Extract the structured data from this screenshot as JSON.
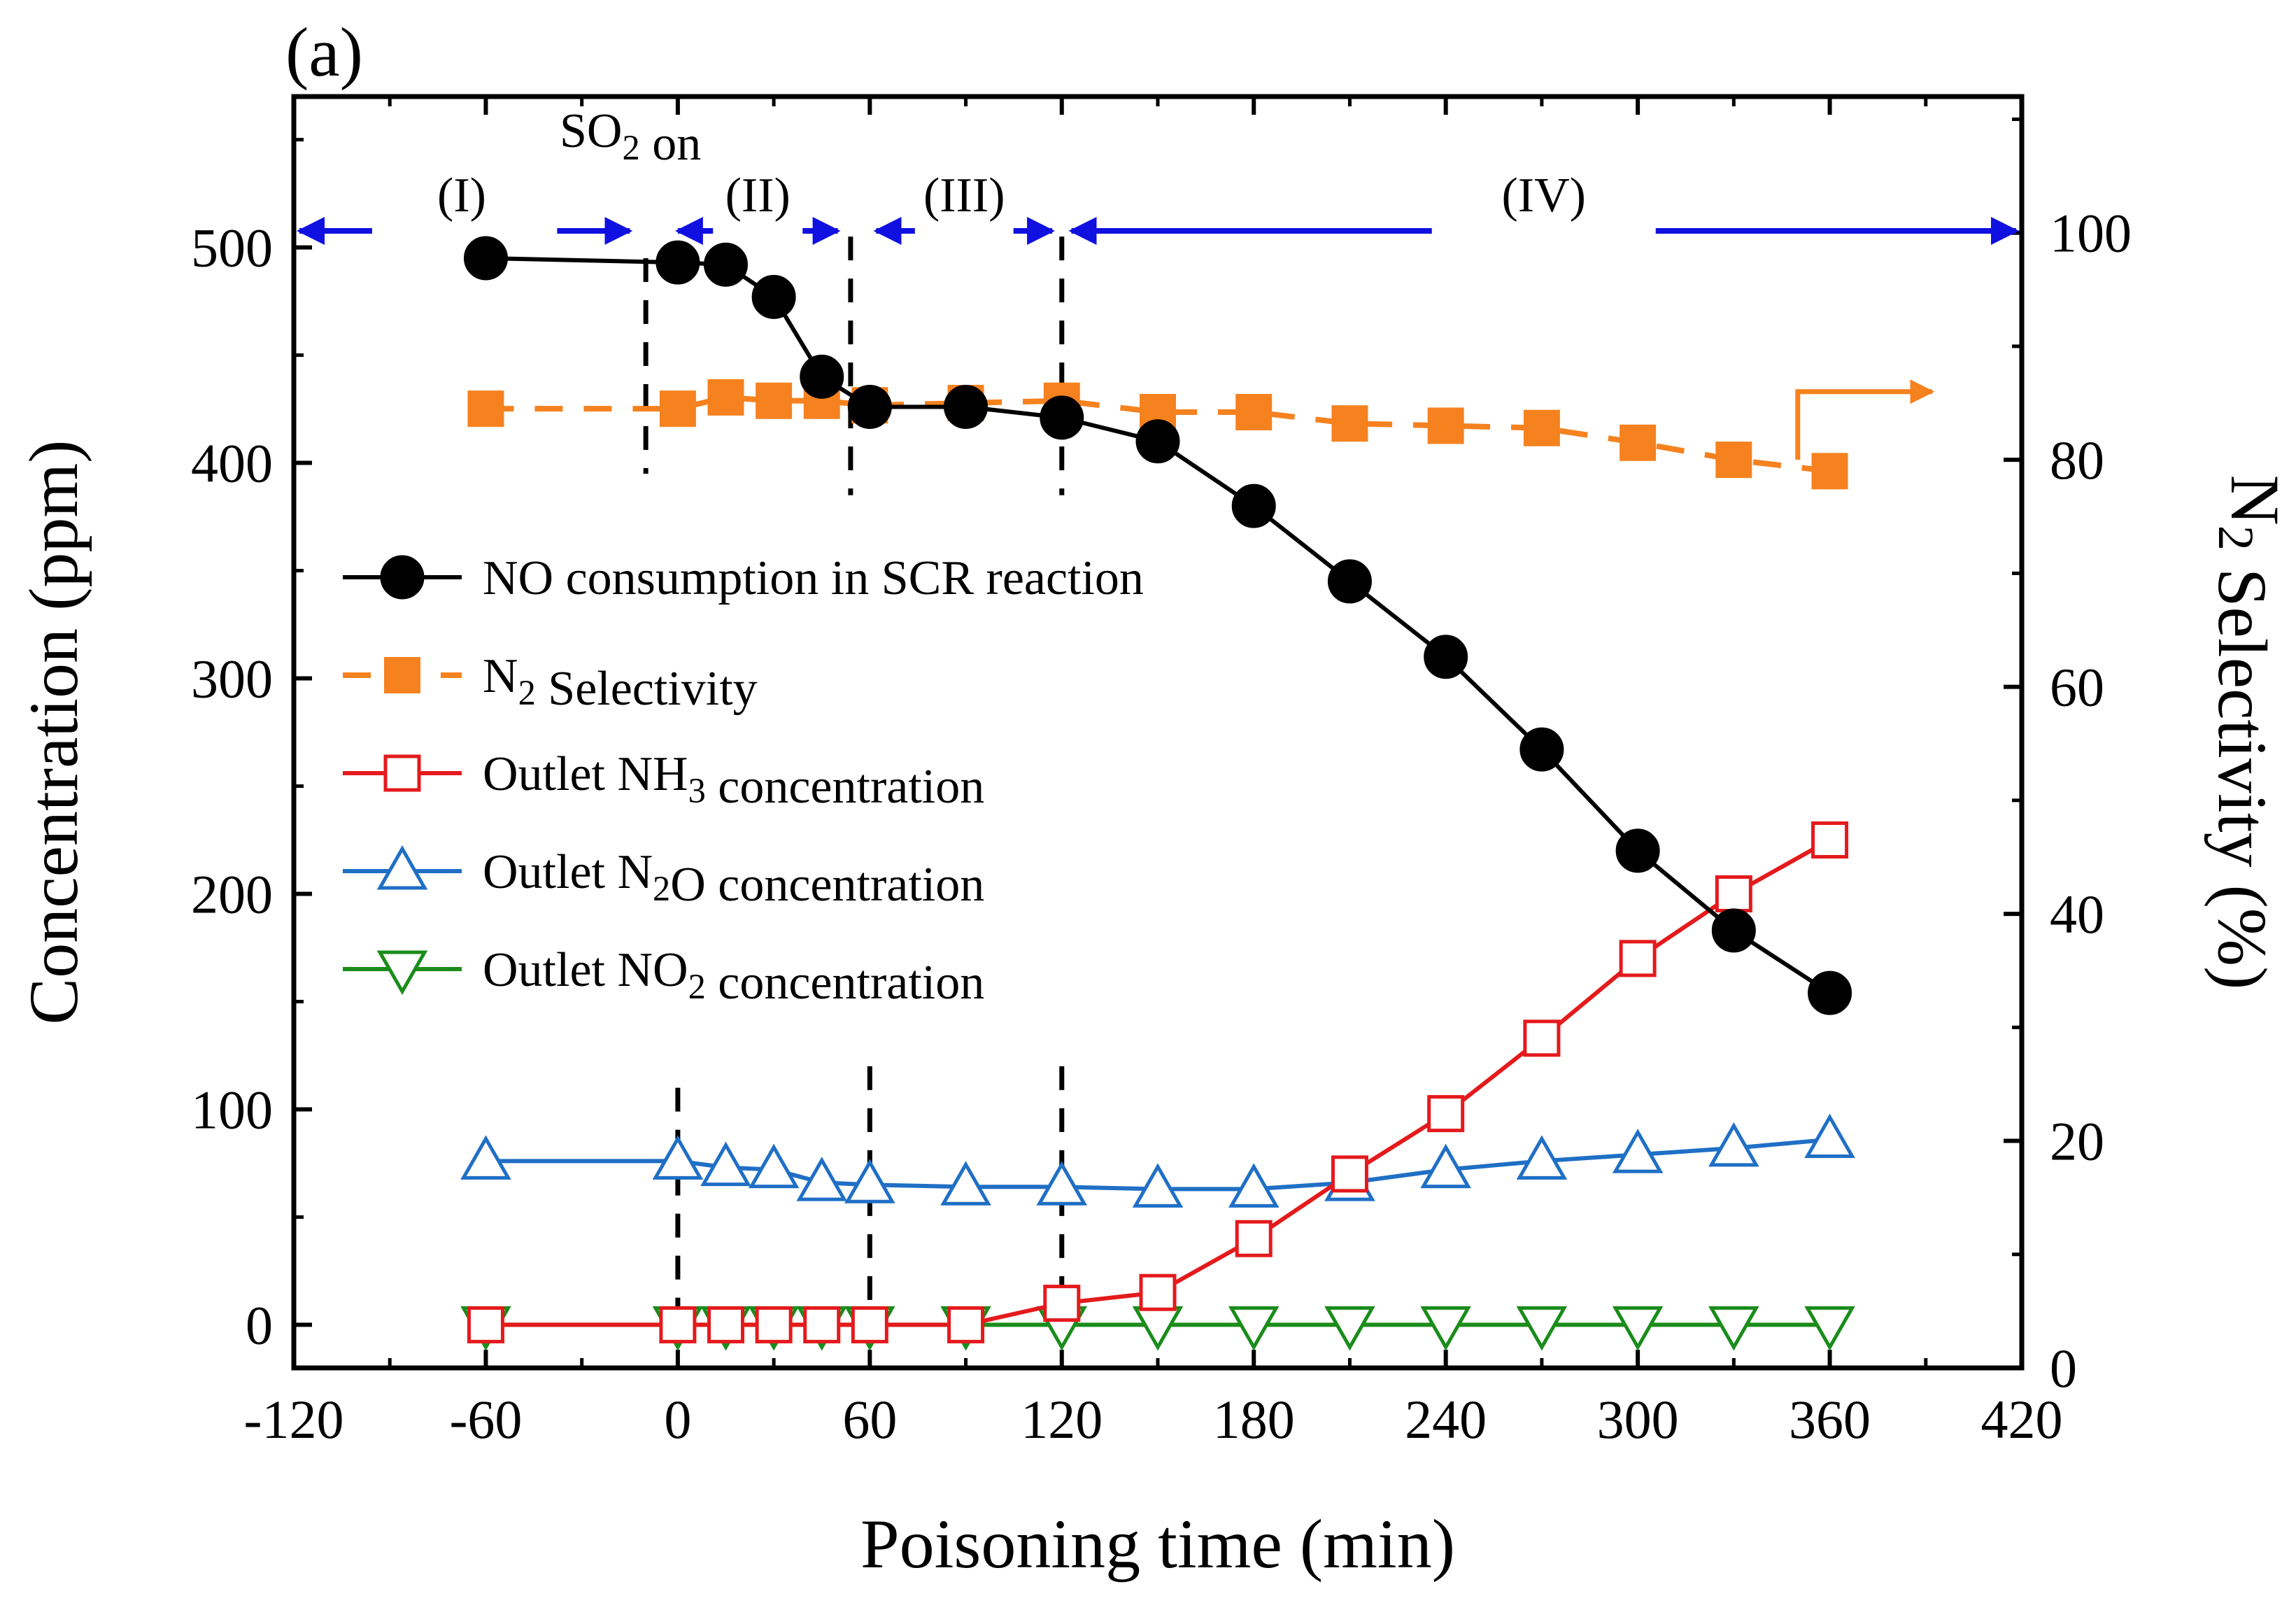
{
  "chart_data": {
    "type": "line",
    "panel_label": "(a)",
    "xlabel": "Poisoning time (min)",
    "ylabel_left": "Concentration (ppm)",
    "ylabel_right": {
      "base": "N",
      "sub": "2",
      "rest": " Selectivity (%)"
    },
    "xlim": [
      -120,
      420
    ],
    "ylim_left": [
      -20,
      570
    ],
    "ylim_right": [
      0,
      112
    ],
    "x_ticks": [
      -120,
      -60,
      0,
      60,
      120,
      180,
      240,
      300,
      360,
      420
    ],
    "y_left_ticks": [
      0,
      100,
      200,
      300,
      400,
      500
    ],
    "y_right_ticks": [
      0,
      20,
      40,
      60,
      80,
      100
    ],
    "series": [
      {
        "name": "NO consumption in SCR reaction",
        "axis": "left",
        "color": "#000000",
        "marker": "filled-circle",
        "line": "solid",
        "x": [
          -60,
          0,
          15,
          30,
          45,
          60,
          90,
          120,
          150,
          180,
          210,
          240,
          270,
          300,
          330,
          360
        ],
        "y": [
          495,
          493,
          492,
          477,
          440,
          426,
          426,
          421,
          410,
          380,
          345,
          310,
          267,
          220,
          183,
          154
        ]
      },
      {
        "name": "N2 Selectivity",
        "axis": "right",
        "color": "#f5821f",
        "marker": "filled-square",
        "line": "dashed",
        "x": [
          -60,
          0,
          15,
          30,
          45,
          60,
          90,
          120,
          150,
          180,
          210,
          240,
          270,
          300,
          330,
          360
        ],
        "y": [
          84.5,
          84.5,
          85.5,
          85.2,
          85.2,
          84.8,
          85.0,
          85.2,
          84.2,
          84.2,
          83.2,
          83.0,
          82.8,
          81.5,
          80.0,
          79.0
        ]
      },
      {
        "name": "Outlet NH3 concentration",
        "axis": "left",
        "color": "#e41a1c",
        "marker": "open-square",
        "line": "solid",
        "x": [
          -60,
          0,
          15,
          30,
          45,
          60,
          90,
          120,
          150,
          180,
          210,
          240,
          270,
          300,
          330,
          360
        ],
        "y": [
          0,
          0,
          0,
          0,
          0,
          0,
          0,
          10,
          15,
          40,
          70,
          98,
          133,
          170,
          200,
          225
        ]
      },
      {
        "name": "Outlet N2O concentration",
        "axis": "left",
        "color": "#1f6fc5",
        "marker": "open-triangle-up",
        "line": "solid",
        "x": [
          -60,
          0,
          15,
          30,
          45,
          60,
          90,
          120,
          150,
          180,
          210,
          240,
          270,
          300,
          330,
          360
        ],
        "y": [
          76,
          76,
          73,
          72,
          66,
          65,
          64,
          64,
          63,
          63,
          66,
          72,
          76,
          79,
          82,
          86
        ]
      },
      {
        "name": "Outlet NO2 concentration",
        "axis": "left",
        "color": "#1a8c1a",
        "marker": "open-triangle-down",
        "line": "solid",
        "x": [
          -60,
          0,
          15,
          30,
          45,
          60,
          90,
          120,
          150,
          180,
          210,
          240,
          270,
          300,
          330,
          360
        ],
        "y": [
          0,
          0,
          0,
          0,
          0,
          0,
          0,
          0,
          0,
          0,
          0,
          0,
          0,
          0,
          0,
          0
        ]
      }
    ],
    "legend": [
      {
        "parts": [
          [
            "NO  consumption in SCR reaction",
            ""
          ]
        ]
      },
      {
        "parts": [
          [
            "N",
            ""
          ],
          [
            "2",
            "sub"
          ],
          [
            " Selectivity",
            ""
          ]
        ]
      },
      {
        "parts": [
          [
            "Outlet NH",
            ""
          ],
          [
            "3",
            "sub"
          ],
          [
            " concentration",
            ""
          ]
        ]
      },
      {
        "parts": [
          [
            "Outlet N",
            ""
          ],
          [
            "2",
            "sub"
          ],
          [
            "O concentration",
            ""
          ]
        ]
      },
      {
        "parts": [
          [
            "Outlet NO",
            ""
          ],
          [
            "2",
            "sub"
          ],
          [
            " concentration",
            ""
          ]
        ]
      }
    ],
    "stages": [
      {
        "label": "(I)",
        "from": -120,
        "to": -15
      },
      {
        "label": "(II)",
        "from": 0,
        "to": 50
      },
      {
        "label": "(III)",
        "from": 62,
        "to": 117
      },
      {
        "label": "(IV)",
        "from": 123,
        "to": 420
      }
    ],
    "so2_annotation": {
      "parts": [
        [
          "SO",
          ""
        ],
        [
          "2",
          "sub"
        ],
        [
          " on",
          ""
        ]
      ]
    },
    "stage_dividers_upper": [
      {
        "x": -10,
        "y_from": 495,
        "y_to": 395
      },
      {
        "x": 54,
        "y_from": 505,
        "y_to": 385
      },
      {
        "x": 120,
        "y_from": 505,
        "y_to": 385
      }
    ],
    "stage_dividers_lower": [
      {
        "x": 0,
        "y_from": 110,
        "y_to": 0
      },
      {
        "x": 60,
        "y_from": 120,
        "y_to": 0
      },
      {
        "x": 120,
        "y_from": 120,
        "y_to": 0
      }
    ],
    "selectivity_axis_arrow": {
      "x": 350,
      "y_from": 80,
      "y_to": 86,
      "x_end": 392,
      "color": "#f5821f"
    }
  }
}
